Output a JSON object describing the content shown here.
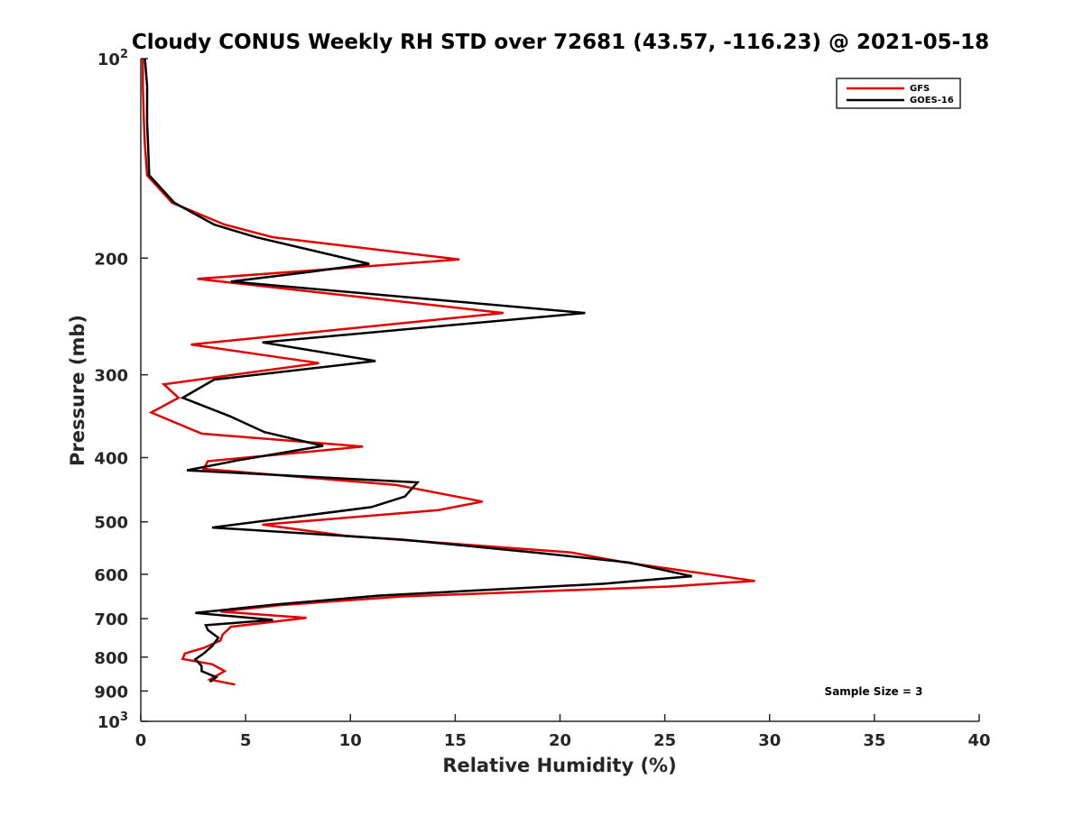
{
  "chart_data": {
    "type": "line",
    "title": "Cloudy CONUS Weekly RH STD over 72681 (43.57, -116.23) @ 2021-05-18",
    "xlabel": "Relative Humidity (%)",
    "ylabel": "Pressure (mb)",
    "xlim": [
      0,
      40
    ],
    "ylim": [
      100,
      1000
    ],
    "yscale": "log",
    "y_reversed": true,
    "x_ticks": [
      0,
      5,
      10,
      15,
      20,
      25,
      30,
      35,
      40
    ],
    "y_ticks": [
      {
        "value": 100,
        "label": "10",
        "sup": "2"
      },
      {
        "value": 200,
        "label": "200",
        "sup": ""
      },
      {
        "value": 300,
        "label": "300",
        "sup": ""
      },
      {
        "value": 400,
        "label": "400",
        "sup": ""
      },
      {
        "value": 500,
        "label": "500",
        "sup": ""
      },
      {
        "value": 600,
        "label": "600",
        "sup": ""
      },
      {
        "value": 700,
        "label": "700",
        "sup": ""
      },
      {
        "value": 800,
        "label": "800",
        "sup": ""
      },
      {
        "value": 900,
        "label": "900",
        "sup": ""
      },
      {
        "value": 1000,
        "label": "10",
        "sup": "3"
      }
    ],
    "grid": false,
    "legend_position": "top-right",
    "annotation": "Sample Size = 3",
    "series": [
      {
        "name": "GFS",
        "color": "#e00000",
        "points": [
          [
            0.1,
            100
          ],
          [
            0.1,
            110
          ],
          [
            0.15,
            125
          ],
          [
            0.2,
            135
          ],
          [
            0.3,
            150
          ],
          [
            1.5,
            165
          ],
          [
            4,
            178
          ],
          [
            6.3,
            186
          ],
          [
            15.2,
            201
          ],
          [
            2.7,
            215
          ],
          [
            17.3,
            242
          ],
          [
            2.4,
            270
          ],
          [
            8.5,
            288
          ],
          [
            1.1,
            310
          ],
          [
            1.8,
            325
          ],
          [
            0.5,
            342
          ],
          [
            2.9,
            368
          ],
          [
            10.6,
            385
          ],
          [
            3.2,
            405
          ],
          [
            3.0,
            416
          ],
          [
            12.2,
            440
          ],
          [
            16.3,
            466
          ],
          [
            14.2,
            480
          ],
          [
            5.8,
            505
          ],
          [
            9.8,
            525
          ],
          [
            20.5,
            556
          ],
          [
            23.0,
            575
          ],
          [
            26.8,
            598
          ],
          [
            29.3,
            614
          ],
          [
            25.2,
            626
          ],
          [
            12.5,
            648
          ],
          [
            6.6,
            668
          ],
          [
            3.8,
            683
          ],
          [
            7.9,
            698
          ],
          [
            4.3,
            720
          ],
          [
            3.9,
            740
          ],
          [
            3.8,
            755
          ],
          [
            3.0,
            775
          ],
          [
            2.1,
            790
          ],
          [
            2.0,
            805
          ],
          [
            3.4,
            820
          ],
          [
            4.0,
            840
          ],
          [
            3.3,
            865
          ],
          [
            4.5,
            880
          ]
        ]
      },
      {
        "name": "GOES-16",
        "color": "#000000",
        "points": [
          [
            0.2,
            100
          ],
          [
            0.3,
            110
          ],
          [
            0.3,
            125
          ],
          [
            0.35,
            135
          ],
          [
            0.4,
            150
          ],
          [
            1.6,
            165
          ],
          [
            3.5,
            178
          ],
          [
            5.5,
            186
          ],
          [
            10.9,
            204
          ],
          [
            8.0,
            210
          ],
          [
            4.3,
            217
          ],
          [
            21.2,
            242
          ],
          [
            5.8,
            268
          ],
          [
            11.2,
            286
          ],
          [
            3.5,
            305
          ],
          [
            2.0,
            325
          ],
          [
            4.3,
            347
          ],
          [
            5.9,
            366
          ],
          [
            8.7,
            384
          ],
          [
            4.6,
            404
          ],
          [
            2.2,
            418
          ],
          [
            13.2,
            436
          ],
          [
            12.6,
            458
          ],
          [
            11.0,
            475
          ],
          [
            3.4,
            510
          ],
          [
            12.5,
            532
          ],
          [
            19.0,
            557
          ],
          [
            23.3,
            576
          ],
          [
            26.3,
            604
          ],
          [
            22.1,
            620
          ],
          [
            11.4,
            646
          ],
          [
            6.5,
            666
          ],
          [
            2.6,
            686
          ],
          [
            6.3,
            703
          ],
          [
            3.1,
            716
          ],
          [
            3.2,
            728
          ],
          [
            3.7,
            748
          ],
          [
            3.4,
            770
          ],
          [
            3.0,
            790
          ],
          [
            2.6,
            806
          ],
          [
            2.9,
            825
          ],
          [
            2.9,
            840
          ],
          [
            3.6,
            858
          ],
          [
            3.3,
            872
          ]
        ]
      }
    ]
  }
}
